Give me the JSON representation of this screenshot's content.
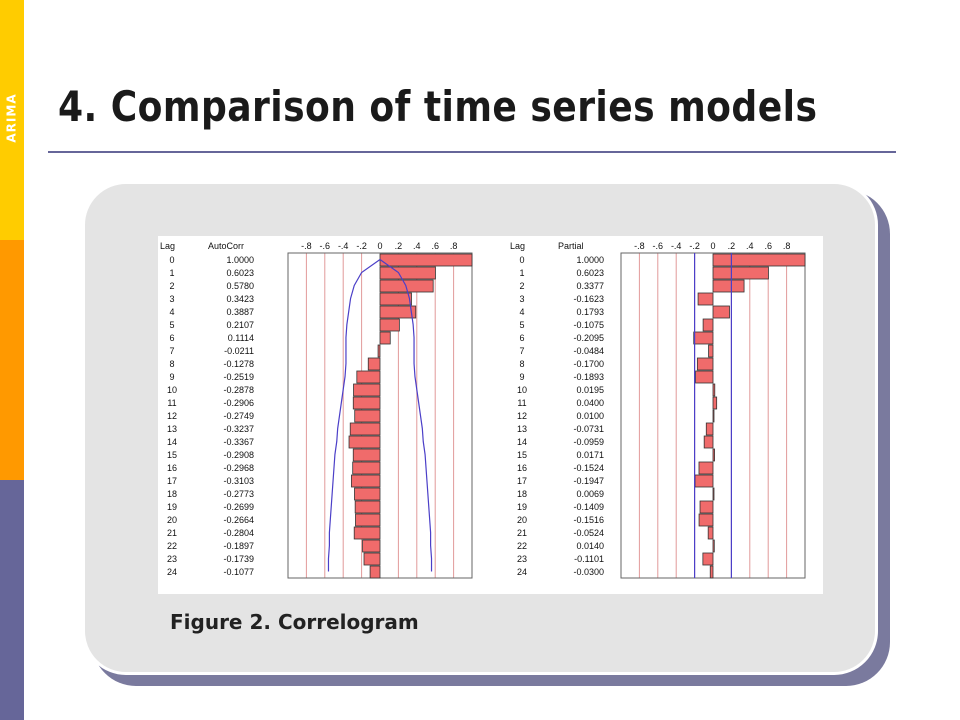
{
  "sidebar": {
    "label": "ARIMA",
    "colors": [
      "#FFCC00",
      "#FF9900",
      "#666699"
    ]
  },
  "slide": {
    "title": "4. Comparison of time series models"
  },
  "caption": "Figure 2. Correlogram",
  "chart_data": [
    {
      "type": "bar",
      "orientation": "horizontal",
      "headers": {
        "lag": "Lag",
        "value": "AutoCorr"
      },
      "axis_ticks": [
        "-.8",
        "-.6",
        "-.4",
        "-.2",
        "0",
        ".2",
        ".4",
        ".6",
        ".8"
      ],
      "xlim": [
        -1,
        1
      ],
      "lags": [
        0,
        1,
        2,
        3,
        4,
        5,
        6,
        7,
        8,
        9,
        10,
        11,
        12,
        13,
        14,
        15,
        16,
        17,
        18,
        19,
        20,
        21,
        22,
        23,
        24
      ],
      "value_labels": [
        "1.0000",
        "0.6023",
        "0.5780",
        "0.3423",
        "0.3887",
        "0.2107",
        "0.1114",
        "-0.0211",
        "-0.1278",
        "-0.2519",
        "-0.2878",
        "-0.2906",
        "-0.2749",
        "-0.3237",
        "-0.3367",
        "-0.2908",
        "-0.2968",
        "-0.3103",
        "-0.2773",
        "-0.2699",
        "-0.2664",
        "-0.2804",
        "-0.1897",
        "-0.1739",
        "-0.1077"
      ],
      "values": [
        1.0,
        0.6023,
        0.578,
        0.3423,
        0.3887,
        0.2107,
        0.1114,
        -0.0211,
        -0.1278,
        -0.2519,
        -0.2878,
        -0.2906,
        -0.2749,
        -0.3237,
        -0.3367,
        -0.2908,
        -0.2968,
        -0.3103,
        -0.2773,
        -0.2699,
        -0.2664,
        -0.2804,
        -0.1897,
        -0.1739,
        -0.1077
      ],
      "confidence_limit": [
        0.0,
        0.2,
        0.28,
        0.32,
        0.34,
        0.36,
        0.37,
        0.37,
        0.37,
        0.38,
        0.4,
        0.42,
        0.44,
        0.46,
        0.47,
        0.49,
        0.5,
        0.51,
        0.52,
        0.53,
        0.54,
        0.55,
        0.55,
        0.56,
        0.56
      ],
      "bar_color": "#F06B6B",
      "confidence_color": "#4B3FC8",
      "grid_color": "#E29A9A"
    },
    {
      "type": "bar",
      "orientation": "horizontal",
      "headers": {
        "lag": "Lag",
        "value": "Partial"
      },
      "axis_ticks": [
        "-.8",
        "-.6",
        "-.4",
        "-.2",
        "0",
        ".2",
        ".4",
        ".6",
        ".8"
      ],
      "xlim": [
        -1,
        1
      ],
      "lags": [
        0,
        1,
        2,
        3,
        4,
        5,
        6,
        7,
        8,
        9,
        10,
        11,
        12,
        13,
        14,
        15,
        16,
        17,
        18,
        19,
        20,
        21,
        22,
        23,
        24
      ],
      "value_labels": [
        "1.0000",
        "0.6023",
        "0.3377",
        "-0.1623",
        "0.1793",
        "-0.1075",
        "-0.2095",
        "-0.0484",
        "-0.1700",
        "-0.1893",
        "0.0195",
        "0.0400",
        "0.0100",
        "-0.0731",
        "-0.0959",
        "0.0171",
        "-0.1524",
        "-0.1947",
        "0.0069",
        "-0.1409",
        "-0.1516",
        "-0.0524",
        "0.0140",
        "-0.1101",
        "-0.0300"
      ],
      "values": [
        1.0,
        0.6023,
        0.3377,
        -0.1623,
        0.1793,
        -0.1075,
        -0.2095,
        -0.0484,
        -0.17,
        -0.1893,
        0.0195,
        0.04,
        0.01,
        -0.0731,
        -0.0959,
        0.0171,
        -0.1524,
        -0.1947,
        0.0069,
        -0.1409,
        -0.1516,
        -0.0524,
        0.014,
        -0.1101,
        -0.03
      ],
      "confidence_limit": 0.2,
      "bar_color": "#F06B6B",
      "confidence_color": "#4B3FC8",
      "grid_color": "#E29A9A"
    }
  ]
}
